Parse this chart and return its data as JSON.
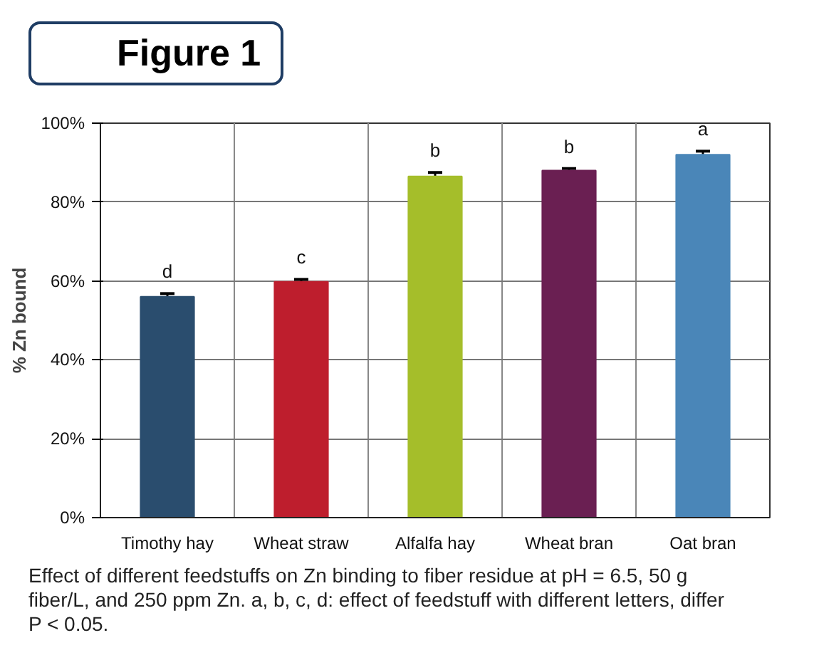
{
  "chart_data": {
    "type": "bar",
    "title": "Figure 1",
    "ylabel": "% Zn bound",
    "categories": [
      "Timothy hay",
      "Wheat straw",
      "Alfalfa hay",
      "Wheat bran",
      "Oat bran"
    ],
    "values": [
      56,
      59.8,
      86.5,
      88,
      92
    ],
    "colors": [
      "#2a4d6e",
      "#be1e2d",
      "#a5be2a",
      "#6a1f52",
      "#4a86b8"
    ],
    "errors": [
      0.8,
      0.6,
      1,
      0.5,
      0.9
    ],
    "ylim": [
      0,
      100
    ],
    "yticks": [
      {
        "value": 0,
        "label": "0%"
      },
      {
        "value": 20,
        "label": "20%"
      },
      {
        "value": 40,
        "label": "40%"
      },
      {
        "value": 60,
        "label": "60%"
      },
      {
        "value": 80,
        "label": "80%"
      },
      {
        "value": 100,
        "label": "100%"
      }
    ],
    "grid": true,
    "annotations": [
      {
        "text": "d",
        "x": "Timothy hay",
        "y": 56
      },
      {
        "text": "c",
        "x": "Wheat straw",
        "y": 59.8
      },
      {
        "text": "b",
        "x": "Alfalfa hay",
        "y": 86.5
      },
      {
        "text": "b",
        "x": "Wheat bran",
        "y": 88
      },
      {
        "text": "a",
        "x": "Oat bran",
        "y": 92
      },
      "Effect of different feedstuffs on Zn binding to fiber residue at pH = 6.5, 50 g fiber/L, and 250 ppm Zn. a, b, c, d: effect of feedstuff with different letters, differ P < 0.05."
    ]
  }
}
